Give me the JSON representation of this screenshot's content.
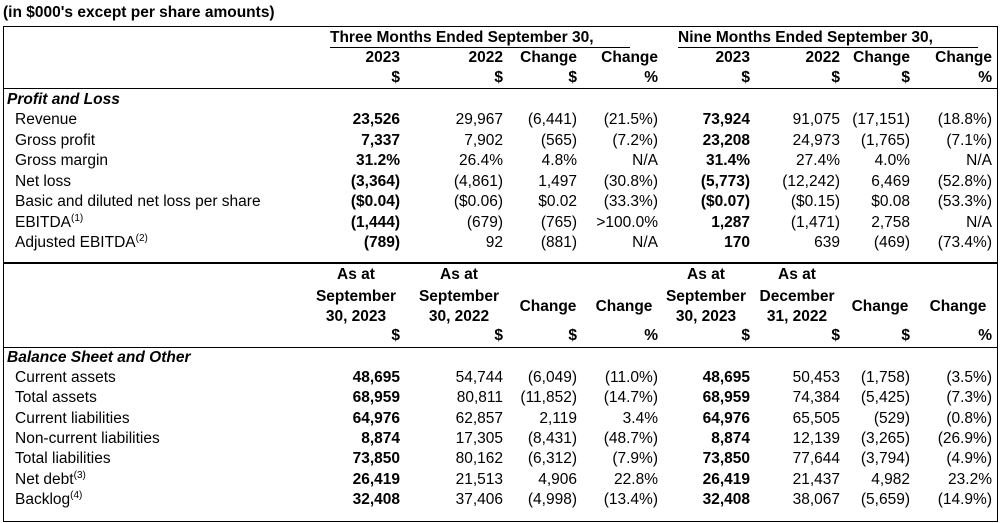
{
  "caption": "(in $000's except per share amounts)",
  "top_header": {
    "group_three": "Three Months Ended September 30,",
    "group_nine": "Nine Months Ended September 30,",
    "cols": [
      "2023",
      "2022",
      "Change",
      "Change",
      "2023",
      "2022",
      "Change",
      "Change"
    ],
    "units": [
      "$",
      "$",
      "$",
      "%",
      "$",
      "$",
      "$",
      "%"
    ]
  },
  "pl_section": "Profit and Loss",
  "pl_rows": [
    {
      "label": "Revenue",
      "sup": "",
      "v": [
        "23,526",
        "29,967",
        "(6,441)",
        "(21.5%)",
        "73,924",
        "91,075",
        "(17,151)",
        "(18.8%)"
      ]
    },
    {
      "label": "Gross profit",
      "sup": "",
      "v": [
        "7,337",
        "7,902",
        "(565)",
        "(7.2%)",
        "23,208",
        "24,973",
        "(1,765)",
        "(7.1%)"
      ]
    },
    {
      "label": "Gross margin",
      "sup": "",
      "v": [
        "31.2%",
        "26.4%",
        "4.8%",
        "N/A",
        "31.4%",
        "27.4%",
        "4.0%",
        "N/A"
      ]
    },
    {
      "label": "Net loss",
      "sup": "",
      "v": [
        "(3,364)",
        "(4,861)",
        "1,497",
        "(30.8%)",
        "(5,773)",
        "(12,242)",
        "6,469",
        "(52.8%)"
      ]
    },
    {
      "label": "Basic and diluted net loss per share",
      "sup": "",
      "v": [
        "($0.04)",
        "($0.06)",
        "$0.02",
        "(33.3%)",
        "($0.07)",
        "($0.15)",
        "$0.08",
        "(53.3%)"
      ]
    },
    {
      "label": "EBITDA",
      "sup": "(1)",
      "v": [
        "(1,444)",
        "(679)",
        "(765)",
        ">100.0%",
        "1,287",
        "(1,471)",
        "2,758",
        "N/A"
      ]
    },
    {
      "label": "Adjusted EBITDA",
      "sup": "(2)",
      "v": [
        "(789)",
        "92",
        "(881)",
        "N/A",
        "170",
        "639",
        "(469)",
        "(73.4%)"
      ]
    }
  ],
  "bottom_header": {
    "asat": [
      "As at",
      "As at",
      "As at",
      "As at"
    ],
    "line1": [
      "September",
      "September",
      "Change",
      "Change",
      "September",
      "December",
      "Change",
      "Change"
    ],
    "line2": [
      "30, 2023",
      "30, 2022",
      "30, 2023",
      "31, 2022"
    ],
    "units": [
      "$",
      "$",
      "$",
      "%",
      "$",
      "$",
      "$",
      "%"
    ]
  },
  "bs_section": "Balance Sheet and Other",
  "bs_rows": [
    {
      "label": "Current assets",
      "sup": "",
      "v": [
        "48,695",
        "54,744",
        "(6,049)",
        "(11.0%)",
        "48,695",
        "50,453",
        "(1,758)",
        "(3.5%)"
      ]
    },
    {
      "label": "Total assets",
      "sup": "",
      "v": [
        "68,959",
        "80,811",
        "(11,852)",
        "(14.7%)",
        "68,959",
        "74,384",
        "(5,425)",
        "(7.3%)"
      ]
    },
    {
      "label": "Current liabilities",
      "sup": "",
      "v": [
        "64,976",
        "62,857",
        "2,119",
        "3.4%",
        "64,976",
        "65,505",
        "(529)",
        "(0.8%)"
      ]
    },
    {
      "label": "Non-current liabilities",
      "sup": "",
      "v": [
        "8,874",
        "17,305",
        "(8,431)",
        "(48.7%)",
        "8,874",
        "12,139",
        "(3,265)",
        "(26.9%)"
      ]
    },
    {
      "label": "Total liabilities",
      "sup": "",
      "v": [
        "73,850",
        "80,162",
        "(6,312)",
        "(7.9%)",
        "73,850",
        "77,644",
        "(3,794)",
        "(4.9%)"
      ]
    },
    {
      "label": "Net debt",
      "sup": "(3)",
      "v": [
        "26,419",
        "21,513",
        "4,906",
        "22.8%",
        "26,419",
        "21,437",
        "4,982",
        "23.2%"
      ]
    },
    {
      "label": "Backlog",
      "sup": "(4)",
      "v": [
        "32,408",
        "37,406",
        "(4,998)",
        "(13.4%)",
        "32,408",
        "38,067",
        "(5,659)",
        "(14.9%)"
      ]
    }
  ]
}
